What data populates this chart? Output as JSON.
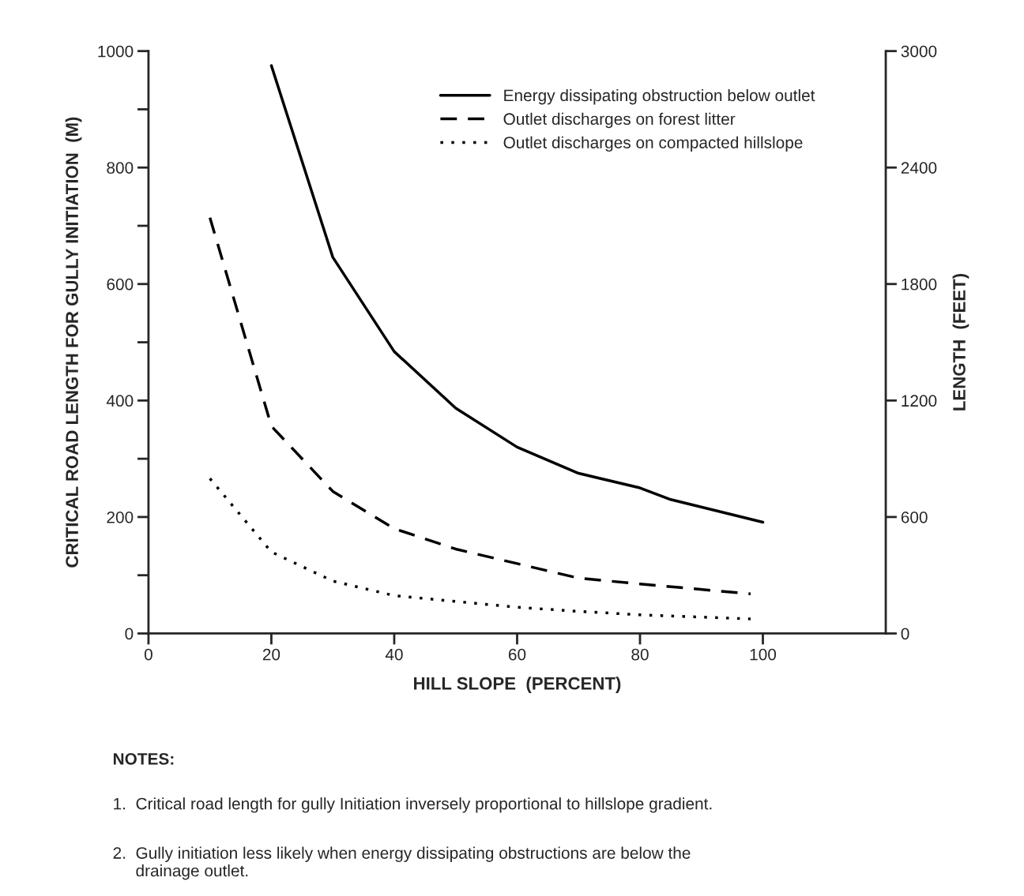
{
  "chart_data": {
    "type": "line",
    "xlabel": "HILL SLOPE  (PERCENT)",
    "ylabel": "CRITICAL ROAD LENGTH FOR GULLY INITIATION  (M)",
    "y2label": "LENGTH  (FEET)",
    "xlim": [
      0,
      120
    ],
    "xticks": [
      0,
      20,
      40,
      60,
      80,
      100
    ],
    "ylim": [
      0,
      1000
    ],
    "yticks": [
      0,
      {
        "value": 100,
        "label": null
      },
      200,
      {
        "value": 300,
        "label": null
      },
      400,
      {
        "value": 500,
        "label": null
      },
      600,
      {
        "value": 700,
        "label": null
      },
      800,
      {
        "value": 900,
        "label": null
      },
      1000
    ],
    "y2lim": [
      0,
      3000
    ],
    "y2ticks": [
      0,
      600,
      1200,
      1800,
      2400,
      3000
    ],
    "grid": false,
    "legend": "top",
    "marker": "none",
    "series": [
      {
        "name": "Energy dissipating obstruction below outlet",
        "color": "#000000",
        "line_style": "solid",
        "x": [
          20,
          30,
          40,
          50,
          60,
          70,
          80,
          85,
          100
        ],
        "values": [
          975,
          646,
          484,
          387,
          320,
          275,
          250,
          230,
          191
        ]
      },
      {
        "name": "Outlet discharges on forest litter",
        "color": "#000000",
        "line_style": "dashed",
        "x": [
          10,
          20,
          30,
          40,
          50,
          60,
          70,
          80,
          98
        ],
        "values": [
          714,
          356,
          244,
          180,
          145,
          120,
          95,
          85,
          68
        ]
      },
      {
        "name": "Outlet discharges on compacted hillslope",
        "color": "#000000",
        "line_style": "dotted",
        "x": [
          10,
          20,
          30,
          40,
          50,
          60,
          70,
          80,
          98
        ],
        "values": [
          266,
          140,
          90,
          65,
          55,
          45,
          38,
          32,
          25
        ]
      }
    ],
    "annotations": [
      "NOTES:",
      "1.  Critical road length for gully Initiation inversely proportional to hillslope gradient.",
      "2.  Gully initiation less likely when energy dissipating obstructions are below the\n     drainage outlet."
    ]
  }
}
